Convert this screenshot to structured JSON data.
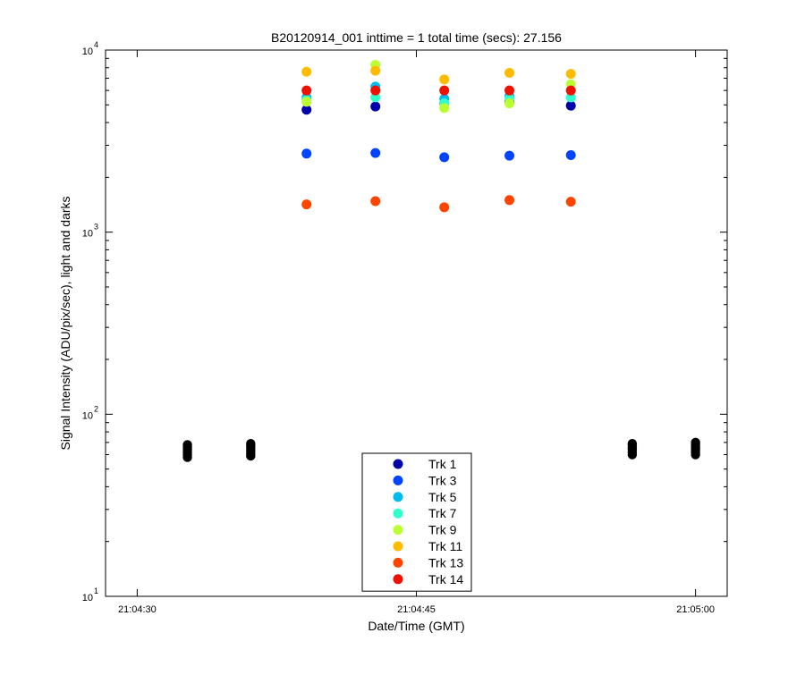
{
  "chart_data": {
    "type": "scatter",
    "title": "B20120914_001 inttime = 1 total time (secs): 27.156",
    "xlabel": "Date/Time (GMT)",
    "ylabel": "Signal Intensity (ADU/pix/sec), light and darks",
    "yscale": "log",
    "ylim": [
      10,
      10000
    ],
    "xlim_seconds": [
      -1.7,
      31.7
    ],
    "x_ticks": [
      {
        "label": "21:04:30",
        "value": 0
      },
      {
        "label": "21:04:45",
        "value": 15
      },
      {
        "label": "21:05:00",
        "value": 30
      }
    ],
    "y_ticks": [
      {
        "base": "10",
        "exp": "1",
        "value": 10
      },
      {
        "base": "10",
        "exp": "2",
        "value": 100
      },
      {
        "base": "10",
        "exp": "3",
        "value": 1000
      },
      {
        "base": "10",
        "exp": "4",
        "value": 10000
      }
    ],
    "legend_position": "bottom-center",
    "grid": false,
    "light_x": [
      9.1,
      12.8,
      16.5,
      20.0,
      23.3
    ],
    "series": [
      {
        "name": "Trk 1",
        "color": "#0000aa",
        "values": [
          4700,
          4900,
          5100,
          5200,
          4950
        ]
      },
      {
        "name": "Trk 3",
        "color": "#0044ff",
        "values": [
          2700,
          2720,
          2580,
          2630,
          2650
        ]
      },
      {
        "name": "Trk 5",
        "color": "#00bbee",
        "values": [
          5500,
          6300,
          5400,
          5600,
          5500
        ]
      },
      {
        "name": "Trk 7",
        "color": "#33ffcc",
        "values": [
          5300,
          5500,
          5100,
          5400,
          5500
        ]
      },
      {
        "name": "Trk 9",
        "color": "#bbff33",
        "values": [
          5200,
          8300,
          4800,
          5100,
          6500
        ]
      },
      {
        "name": "Trk 11",
        "color": "#ffbb00",
        "values": [
          7600,
          7700,
          6900,
          7500,
          7400
        ]
      },
      {
        "name": "Trk 13",
        "color": "#ff4400",
        "values": [
          1420,
          1480,
          1370,
          1500,
          1470
        ]
      },
      {
        "name": "Trk 14",
        "color": "#ee1100",
        "values": [
          6000,
          6000,
          6000,
          6000,
          6000
        ]
      }
    ],
    "darks": {
      "color": "#000000",
      "x": [
        2.7,
        6.1,
        26.6,
        30.0
      ],
      "values": [
        [
          58,
          60,
          62,
          64,
          66,
          68
        ],
        [
          59,
          61,
          63,
          65,
          67,
          69
        ],
        [
          60,
          62,
          64,
          66,
          68,
          69
        ],
        [
          60,
          62,
          64,
          66,
          68,
          70
        ]
      ]
    }
  }
}
